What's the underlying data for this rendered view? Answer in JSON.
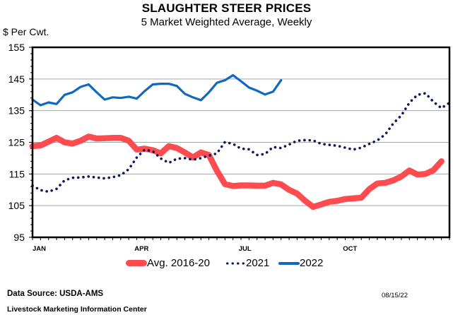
{
  "chart_data": {
    "type": "line",
    "title": "SLAUGHTER STEER PRICES",
    "subtitle": "5 Market Weighted Average, Weekly",
    "ylabel": "$ Per Cwt.",
    "xlabel": "",
    "ylim": [
      95,
      155
    ],
    "yticks": [
      95,
      105,
      115,
      125,
      135,
      145,
      155
    ],
    "xlim": [
      1,
      53
    ],
    "xticks": [
      {
        "label": "JAN",
        "week": 1
      },
      {
        "label": "APR",
        "week": 14.6
      },
      {
        "label": "JUL",
        "week": 27.5
      },
      {
        "label": "OCT",
        "week": 40.6
      }
    ],
    "grid": "horizontal",
    "legend_position": "bottom",
    "series": [
      {
        "name": "Avg. 2016-20",
        "color": "#fd4c50",
        "style": "thick",
        "values": [
          123.8,
          124,
          125.2,
          126.4,
          125,
          124.6,
          125.5,
          126.8,
          126.2,
          126.3,
          126.4,
          126.4,
          125.5,
          122.7,
          123,
          122.5,
          121.5,
          123.8,
          123.2,
          121.8,
          120.2,
          121.8,
          121,
          116,
          111.8,
          111.2,
          111.4,
          111.4,
          111.3,
          111.3,
          112.2,
          111.7,
          110,
          108.8,
          106.5,
          104.6,
          105.4,
          106.2,
          106.5,
          107.1,
          107.3,
          107.5,
          110.2,
          112,
          112.2,
          113,
          114.2,
          116.1,
          114.8,
          115,
          116.2,
          119
        ]
      },
      {
        "name": "2021",
        "color": "#0d1b5a",
        "style": "dotted",
        "values": [
          111.3,
          109.9,
          109.4,
          110.3,
          113,
          113.8,
          113.9,
          114.2,
          113.9,
          113.6,
          114,
          114.6,
          116.5,
          120.2,
          122.7,
          122.2,
          119.9,
          118.5,
          119.8,
          120,
          119.5,
          120,
          120.8,
          121.5,
          125.1,
          124.5,
          123,
          122.8,
          121,
          121.3,
          123.5,
          123.2,
          124.3,
          125.5,
          125.7,
          125.6,
          124.5,
          124.2,
          123.9,
          123.3,
          122.7,
          123.3,
          124.5,
          125.6,
          127.5,
          131,
          133.5,
          137.5,
          140,
          140.5,
          137.8,
          135.8,
          137.5
        ]
      },
      {
        "name": "2022",
        "color": "#1168c2",
        "style": "solid",
        "values": [
          138.5,
          136.7,
          137.6,
          137.1,
          140,
          140.8,
          142.5,
          143.3,
          140.8,
          138.5,
          139.2,
          139,
          139.4,
          138.8,
          141.2,
          143.3,
          143.5,
          143.5,
          142.8,
          140.3,
          139.2,
          138.3,
          140.8,
          143.8,
          144.6,
          146.2,
          144.3,
          142.3,
          141.3,
          140.1,
          141,
          144.6
        ]
      }
    ]
  },
  "footer": {
    "source": "Data Source:  USDA-AMS",
    "organization": "Livestock Marketing Information Center",
    "date": "08/15/22"
  }
}
